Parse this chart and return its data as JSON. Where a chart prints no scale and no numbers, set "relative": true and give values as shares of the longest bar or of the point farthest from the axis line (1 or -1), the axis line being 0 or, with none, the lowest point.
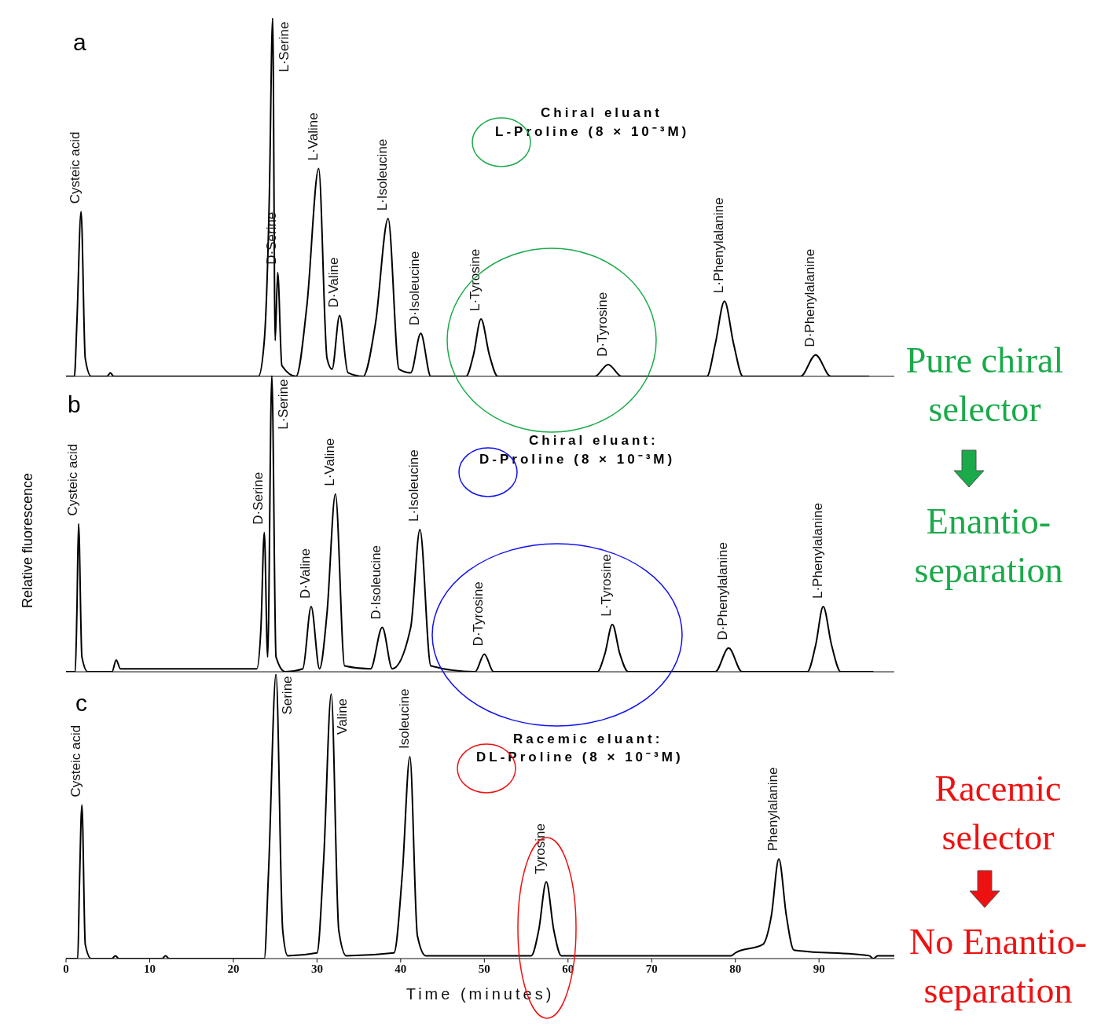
{
  "chart_data": [
    {
      "type": "line",
      "title": "a",
      "subtitle": "Chiral eluant",
      "relative": true,
      "xlim": [
        0,
        99
      ],
      "tick_labels": false,
      "x": [
        0,
        1.0,
        1.3,
        1.8,
        2.3,
        3,
        4.9,
        5.3,
        5.7,
        23,
        23.7,
        24.3,
        24.7,
        25.0,
        25.3,
        25.8,
        27.5,
        28.8,
        30.2,
        31.2,
        31.8,
        32.7,
        33.7,
        35.5,
        37,
        38.5,
        39.8,
        41.2,
        42.4,
        43.6,
        47.8,
        48.7,
        49.6,
        50.6,
        51.6,
        63.2,
        64.8,
        66.4,
        76.6,
        77.6,
        78.7,
        79.8,
        80.9,
        87.8,
        89.6,
        91.4,
        96
      ],
      "series": [
        {
          "color": "#000000",
          "values": [
            0,
            0,
            0.15,
            0.46,
            0.05,
            0,
            0,
            0.01,
            0,
            0,
            0.1,
            0.5,
            1,
            0.1,
            0.29,
            0.03,
            0,
            0.2,
            0.58,
            0.05,
            0.02,
            0.17,
            0.01,
            0,
            0.15,
            0.44,
            0.02,
            0.01,
            0.12,
            0,
            0,
            0.06,
            0.16,
            0.06,
            0,
            0,
            0.033,
            0,
            0,
            0.09,
            0.21,
            0.09,
            0,
            0,
            0.06,
            0,
            0
          ]
        }
      ],
      "annotations": [
        "L-Proline (8 × 10⁻³M)",
        "Pure chiral selector",
        {
          "text": "Cysteic acid",
          "x": 1.8,
          "y": 0.46
        },
        {
          "text": "L·Serine",
          "x": 24.7,
          "y": 1
        },
        {
          "text": "D·Serine",
          "x": 25.3,
          "y": 0.29
        },
        {
          "text": "L·Valine",
          "x": 30.2,
          "y": 0.58
        },
        {
          "text": "D·Valine",
          "x": 32.7,
          "y": 0.17
        },
        {
          "text": "L·Isoleucine",
          "x": 38.5,
          "y": 0.44
        },
        {
          "text": "D·Isoleucine",
          "x": 42.4,
          "y": 0.12
        },
        {
          "text": "L·Tyrosine",
          "x": 49.6,
          "y": 0.16
        },
        {
          "text": "D·Tyrosine",
          "x": 64.8,
          "y": 0.033
        },
        {
          "text": "L·Phenylalanine",
          "x": 78.7,
          "y": 0.21
        },
        {
          "text": "D·Phenylalanine",
          "x": 89.6,
          "y": 0.06
        }
      ]
    },
    {
      "type": "line",
      "title": "b",
      "subtitle": "Chiral eluant:",
      "ylabel": "Relative fluorescence",
      "relative": true,
      "xlim": [
        0,
        99
      ],
      "tick_labels": false,
      "x": [
        0,
        1.1,
        1.3,
        1.5,
        1.9,
        2.6,
        5.5,
        6.0,
        6.5,
        22.8,
        23.3,
        23.7,
        24.1,
        24.6,
        25.1,
        26.2,
        28.3,
        29.3,
        30.3,
        31.2,
        32.2,
        33.3,
        36.4,
        37.8,
        39,
        41.2,
        42.3,
        43.6,
        48.9,
        50.0,
        51.1,
        63.5,
        64.4,
        65.3,
        66.2,
        67.2,
        77.6,
        79.2,
        80.8,
        88.6,
        89.6,
        90.5,
        91.5,
        92.6,
        96.5
      ],
      "series": [
        {
          "color": "#000000",
          "values": [
            0,
            0,
            0.2,
            0.5,
            0.05,
            0,
            0,
            0.04,
            0.01,
            0.01,
            0.15,
            0.47,
            0.05,
            1,
            0.05,
            0,
            0.01,
            0.22,
            0.01,
            0.2,
            0.6,
            0.02,
            0.01,
            0.15,
            0.01,
            0.15,
            0.48,
            0.02,
            0,
            0.06,
            0,
            0,
            0.06,
            0.16,
            0.06,
            0,
            0,
            0.08,
            0,
            0,
            0.09,
            0.22,
            0.09,
            0,
            0
          ]
        }
      ],
      "annotations": [
        "D-Proline (8 × 10⁻³M)",
        "Enantio-separation",
        {
          "text": "Cysteic acid",
          "x": 1.5,
          "y": 0.5
        },
        {
          "text": "D·Serine",
          "x": 23.7,
          "y": 0.47
        },
        {
          "text": "L·Serine",
          "x": 24.6,
          "y": 1
        },
        {
          "text": "D·Valine",
          "x": 29.3,
          "y": 0.22
        },
        {
          "text": "L·Valine",
          "x": 32.2,
          "y": 0.6
        },
        {
          "text": "D·Isoleucine",
          "x": 37.8,
          "y": 0.15
        },
        {
          "text": "L·Isoleucine",
          "x": 42.3,
          "y": 0.48
        },
        {
          "text": "D·Tyrosine",
          "x": 50.0,
          "y": 0.06
        },
        {
          "text": "L·Tyrosine",
          "x": 65.3,
          "y": 0.16
        },
        {
          "text": "D·Phenylalanine",
          "x": 79.2,
          "y": 0.08
        },
        {
          "text": "L·Phenylalanine",
          "x": 90.5,
          "y": 0.22
        }
      ]
    },
    {
      "type": "line",
      "title": "c",
      "subtitle": "Racemic eluant:",
      "xlabel": "Time (minutes)",
      "relative": true,
      "xlim": [
        0,
        99
      ],
      "xticks": [
        0,
        10,
        20,
        30,
        40,
        50,
        60,
        70,
        80,
        90
      ],
      "tick_labels": "x",
      "x": [
        0,
        1.4,
        1.6,
        1.9,
        2.3,
        3,
        5.5,
        5.9,
        6.3,
        11.5,
        11.9,
        12.3,
        23.7,
        24.2,
        25.1,
        25.9,
        26.5,
        30,
        30.8,
        31.7,
        32.6,
        33.5,
        39.2,
        40.2,
        41.1,
        42.0,
        43,
        55.6,
        56.5,
        57.4,
        58.3,
        59.2,
        79.5,
        80,
        83.3,
        84.3,
        85.2,
        86.1,
        87,
        96,
        96.5,
        97,
        99
      ],
      "series": [
        {
          "color": "#000000",
          "values": [
            0,
            0,
            0.25,
            0.54,
            0.05,
            0,
            0,
            0.01,
            0,
            0,
            0.01,
            0,
            0,
            0.3,
            1,
            0.1,
            0.01,
            0.02,
            0.35,
            0.93,
            0.1,
            0.01,
            0.02,
            0.3,
            0.71,
            0.08,
            0.01,
            0.01,
            0.1,
            0.27,
            0.1,
            0.01,
            0.01,
            0.02,
            0.05,
            0.15,
            0.35,
            0.15,
            0.03,
            0.01,
            0,
            0.01,
            0.01
          ]
        }
      ],
      "annotations": [
        "DL-Proline (8 × 10⁻³M)",
        "Racemic selector",
        "No Enantio-separation",
        {
          "text": "Cysteic acid",
          "x": 1.9,
          "y": 0.54
        },
        {
          "text": "Serine",
          "x": 25.1,
          "y": 1
        },
        {
          "text": "Valine",
          "x": 31.7,
          "y": 0.93
        },
        {
          "text": "Isoleucine",
          "x": 41.1,
          "y": 0.71
        },
        {
          "text": "Tyrosine",
          "x": 57.4,
          "y": 0.27
        },
        {
          "text": "Phenylalanine",
          "x": 85.2,
          "y": 0.35
        }
      ]
    }
  ]
}
